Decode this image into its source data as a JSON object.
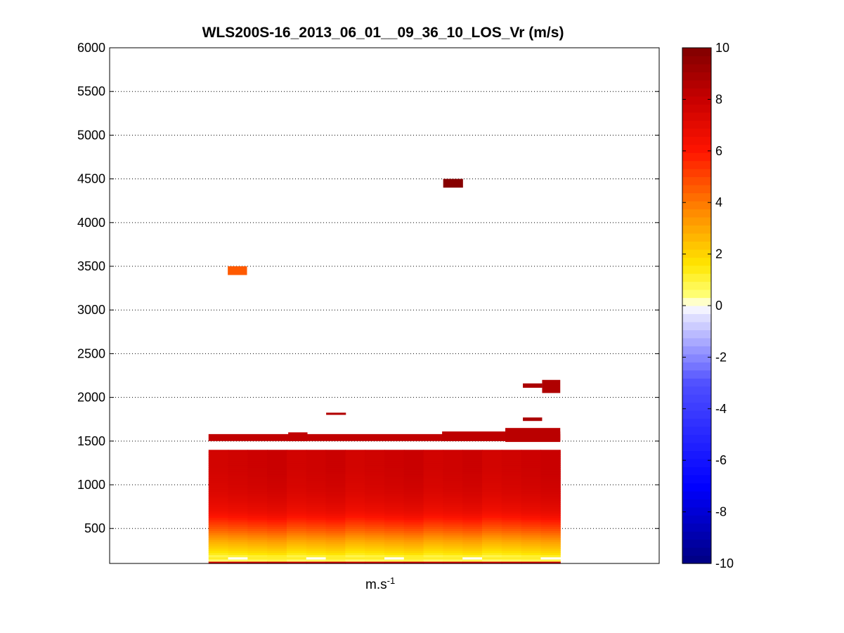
{
  "chart_data": {
    "type": "heatmap",
    "title": "WLS200S-16_2013_06_01__09_36_10_LOS_Vr (m/s)",
    "xlabel": "m.s",
    "xlabel_superscript": "-1",
    "ylabel": "",
    "ylim": [
      100,
      6000
    ],
    "yticks": [
      500,
      1000,
      1500,
      2000,
      2500,
      3000,
      3500,
      4000,
      4500,
      5000,
      5500,
      6000
    ],
    "grid": "y-dotted",
    "colorbar": {
      "colormap": "jet",
      "clim": [
        -10,
        10
      ],
      "ticks": [
        -10,
        -8,
        -6,
        -4,
        -2,
        0,
        2,
        4,
        6,
        8,
        10
      ],
      "placement": "right"
    },
    "profile": {
      "comment_free": true,
      "x_start": 0.18,
      "x_end": 0.82,
      "columns": 18,
      "altitude_values": [
        [
          120,
          1
        ],
        [
          160,
          0.3
        ],
        [
          200,
          1.4
        ],
        [
          250,
          2.0
        ],
        [
          300,
          2.5
        ],
        [
          350,
          3.0
        ],
        [
          400,
          3.6
        ],
        [
          450,
          4.2
        ],
        [
          500,
          4.8
        ],
        [
          550,
          5.3
        ],
        [
          600,
          5.8
        ],
        [
          650,
          6.3
        ],
        [
          700,
          6.7
        ],
        [
          800,
          7.1
        ],
        [
          900,
          7.4
        ],
        [
          1000,
          7.6
        ],
        [
          1200,
          7.8
        ],
        [
          1400,
          7.8
        ]
      ],
      "top_km": 1400
    },
    "features": [
      {
        "x_from": 0.18,
        "x_to": 0.82,
        "y_from": 1500,
        "y_to": 1580,
        "value": 8.2
      },
      {
        "x_from": 0.325,
        "x_to": 0.36,
        "y_from": 1500,
        "y_to": 1600,
        "value": 8.2
      },
      {
        "x_from": 0.605,
        "x_to": 0.82,
        "y_from": 1500,
        "y_to": 1610,
        "value": 8.3
      },
      {
        "x_from": 0.72,
        "x_to": 0.82,
        "y_from": 1490,
        "y_to": 1650,
        "value": 8.4
      },
      {
        "x_from": 0.394,
        "x_to": 0.43,
        "y_from": 1800,
        "y_to": 1825,
        "value": 8.6
      },
      {
        "x_from": 0.752,
        "x_to": 0.787,
        "y_from": 1730,
        "y_to": 1770,
        "value": 8.8
      },
      {
        "x_from": 0.752,
        "x_to": 0.787,
        "y_from": 2110,
        "y_to": 2160,
        "value": 8.8
      },
      {
        "x_from": 0.787,
        "x_to": 0.82,
        "y_from": 2050,
        "y_to": 2200,
        "value": 8.7
      },
      {
        "x_from": 0.215,
        "x_to": 0.25,
        "y_from": 3400,
        "y_to": 3500,
        "value": 4.6
      },
      {
        "x_from": 0.607,
        "x_to": 0.643,
        "y_from": 4400,
        "y_to": 4500,
        "value": 9.8
      }
    ]
  }
}
